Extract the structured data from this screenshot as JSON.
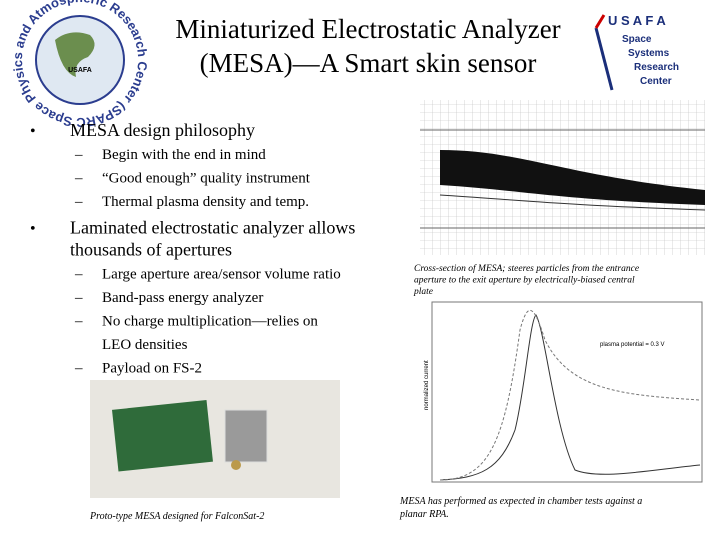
{
  "header": {
    "title_lines": [
      "Miniaturized Electrostatic Analyzer",
      "(MESA)—A Smart skin sensor"
    ]
  },
  "logo_left": {
    "ring": "Space Physics and Atmospheric Research Center (SPARC)",
    "center": "USAFA"
  },
  "logo_right": {
    "letters": "U S A F A",
    "lines": [
      "Space",
      "Systems",
      "Research",
      "Center"
    ]
  },
  "bullets": [
    {
      "lines": [
        "MESA design philosophy"
      ],
      "items": [
        [
          "Begin with the end in mind"
        ],
        [
          "“Good enough” quality instrument"
        ],
        [
          "Thermal plasma density and temp."
        ]
      ]
    },
    {
      "lines": [
        "Laminated electrostatic analyzer allows",
        "thousands of apertures"
      ],
      "items": [
        [
          "Large aperture area/sensor volume ratio"
        ],
        [
          "Band-pass energy analyzer"
        ],
        [
          "No charge multiplication—relies on",
          "LEO densities"
        ],
        [
          "Payload on FS-2"
        ]
      ]
    }
  ],
  "figures": {
    "photo_caption": "Proto-type MESA designed for FalconSat-2",
    "cross_section_caption": [
      "Cross-section of MESA; steeres particles  from the entrance",
      "aperture to the exit aperture by electrically-biased central",
      "plate"
    ],
    "graph_caption": [
      "MESA has performed as expected in chamber tests against a",
      "planar RPA."
    ],
    "graph_labels": {
      "y_axis": "normalized current",
      "plasma": "plasma potential = 0.3 V"
    }
  }
}
